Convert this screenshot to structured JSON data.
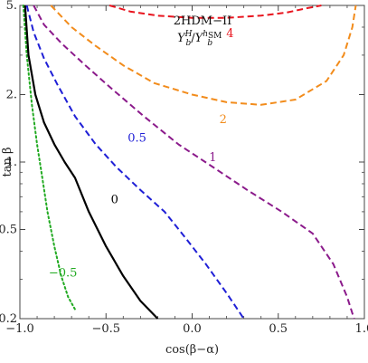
{
  "chart_data": {
    "type": "line",
    "title": "",
    "xlabel": "cos(β−α)",
    "ylabel": "tan β",
    "xlim": [
      -1.0,
      1.0
    ],
    "ylim": [
      0.2,
      5.0
    ],
    "y_scale": "log",
    "grid": false,
    "x_ticks": [
      {
        "value": -1.0,
        "label": "−1.0"
      },
      {
        "value": -0.5,
        "label": "−0.5"
      },
      {
        "value": 0.0,
        "label": "0.0"
      },
      {
        "value": 0.5,
        "label": "0.5"
      },
      {
        "value": 1.0,
        "label": "1.0"
      }
    ],
    "y_ticks": [
      {
        "value": 0.2,
        "label": "0.2"
      },
      {
        "value": 0.5,
        "label": "0.5"
      },
      {
        "value": 1.0,
        "label": "1."
      },
      {
        "value": 2.0,
        "label": "2."
      },
      {
        "value": 5.0,
        "label": "5."
      }
    ],
    "annotation": {
      "model": "2HDM−II",
      "ratio_base_1": "Y",
      "ratio_sup_1": "H",
      "ratio_sub_1": "b",
      "ratio_sep": "/",
      "ratio_base_2": "Y",
      "ratio_sup_2": "h",
      "ratio_sup_2_sub": "SM",
      "ratio_sub_2": "b"
    },
    "series": [
      {
        "label": "−0.5",
        "color": "#22aa22",
        "style": "dotted",
        "label_pos": {
          "x": -0.75,
          "y": 0.32
        },
        "points": [
          [
            -0.98,
            5.0
          ],
          [
            -0.96,
            3.0
          ],
          [
            -0.93,
            1.8
          ],
          [
            -0.9,
            1.2
          ],
          [
            -0.87,
            0.85
          ],
          [
            -0.84,
            0.6
          ],
          [
            -0.8,
            0.42
          ],
          [
            -0.76,
            0.31
          ],
          [
            -0.72,
            0.25
          ],
          [
            -0.68,
            0.22
          ]
        ]
      },
      {
        "label": "0",
        "color": "#000000",
        "style": "solid",
        "label_pos": {
          "x": -0.45,
          "y": 0.68
        },
        "points": [
          [
            -0.97,
            5.0
          ],
          [
            -0.95,
            3.0
          ],
          [
            -0.91,
            2.0
          ],
          [
            -0.86,
            1.5
          ],
          [
            -0.8,
            1.2
          ],
          [
            -0.74,
            1.0
          ],
          [
            -0.68,
            0.85
          ],
          [
            -0.6,
            0.6
          ],
          [
            -0.5,
            0.42
          ],
          [
            -0.4,
            0.31
          ],
          [
            -0.3,
            0.24
          ],
          [
            -0.2,
            0.2
          ]
        ]
      },
      {
        "label": "0.5",
        "color": "#1f1fd6",
        "style": "dashed",
        "label_pos": {
          "x": -0.32,
          "y": 1.28
        },
        "points": [
          [
            -0.96,
            5.0
          ],
          [
            -0.92,
            3.8
          ],
          [
            -0.86,
            2.9
          ],
          [
            -0.78,
            2.2
          ],
          [
            -0.68,
            1.6
          ],
          [
            -0.56,
            1.2
          ],
          [
            -0.44,
            0.95
          ],
          [
            -0.3,
            0.75
          ],
          [
            -0.16,
            0.6
          ],
          [
            -0.04,
            0.46
          ],
          [
            0.08,
            0.35
          ],
          [
            0.2,
            0.26
          ],
          [
            0.3,
            0.2
          ]
        ]
      },
      {
        "label": "1",
        "color": "#8b1a8b",
        "style": "dashed",
        "label_pos": {
          "x": 0.12,
          "y": 1.05
        },
        "points": [
          [
            -0.92,
            5.0
          ],
          [
            -0.86,
            4.1
          ],
          [
            -0.76,
            3.4
          ],
          [
            -0.62,
            2.7
          ],
          [
            -0.46,
            2.1
          ],
          [
            -0.28,
            1.6
          ],
          [
            -0.08,
            1.2
          ],
          [
            0.12,
            0.95
          ],
          [
            0.32,
            0.75
          ],
          [
            0.52,
            0.6
          ],
          [
            0.7,
            0.48
          ],
          [
            0.82,
            0.35
          ],
          [
            0.9,
            0.25
          ],
          [
            0.94,
            0.2
          ]
        ]
      },
      {
        "label": "2",
        "color": "#f28c1c",
        "style": "dashed",
        "label_pos": {
          "x": 0.18,
          "y": 1.55
        },
        "points": [
          [
            -0.82,
            5.0
          ],
          [
            -0.7,
            4.0
          ],
          [
            -0.56,
            3.3
          ],
          [
            -0.4,
            2.7
          ],
          [
            -0.22,
            2.25
          ],
          [
            0.0,
            2.0
          ],
          [
            0.2,
            1.85
          ],
          [
            0.4,
            1.8
          ],
          [
            0.6,
            1.9
          ],
          [
            0.78,
            2.3
          ],
          [
            0.88,
            3.0
          ],
          [
            0.93,
            4.0
          ],
          [
            0.95,
            5.0
          ]
        ]
      },
      {
        "label": "4",
        "color": "#e8141e",
        "style": "dashed",
        "label_pos": {
          "x": 0.22,
          "y": 3.75
        },
        "points": [
          [
            -0.48,
            5.0
          ],
          [
            -0.36,
            4.7
          ],
          [
            -0.2,
            4.5
          ],
          [
            0.0,
            4.4
          ],
          [
            0.2,
            4.4
          ],
          [
            0.4,
            4.5
          ],
          [
            0.55,
            4.65
          ],
          [
            0.66,
            4.85
          ],
          [
            0.75,
            5.0
          ]
        ]
      }
    ]
  }
}
